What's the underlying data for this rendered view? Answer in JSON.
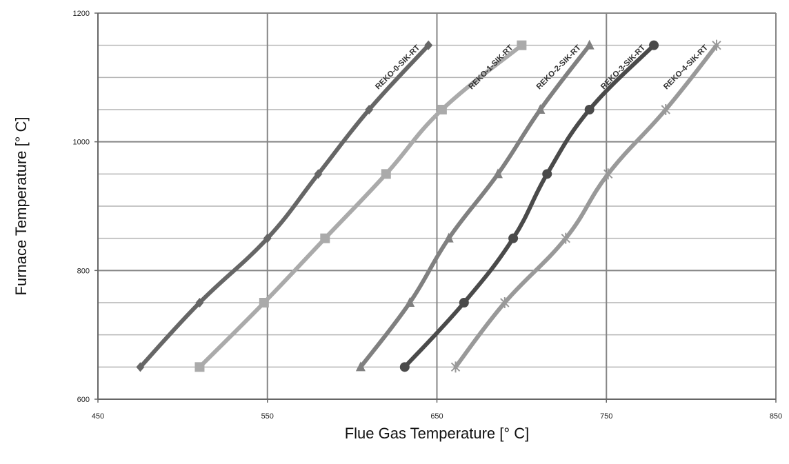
{
  "chart_data": {
    "type": "line",
    "title": "",
    "xlabel": "Flue Gas Temperature [° C]",
    "ylabel": "Furnace Temperature [° C]",
    "xlim": [
      450,
      850
    ],
    "ylim": [
      600,
      1200
    ],
    "x_ticks": [
      450,
      550,
      650,
      750,
      850
    ],
    "y_ticks": [
      600,
      800,
      1000,
      1200
    ],
    "x_tick_labels": [
      "450",
      "550",
      "650",
      "750",
      "850"
    ],
    "y_tick_labels": [
      "600",
      "800",
      "1000",
      "1200"
    ],
    "major_x_gridlines": [
      550,
      650,
      750
    ],
    "minor_y_gridlines": [
      650,
      700,
      750,
      850,
      900,
      950,
      1050,
      1100,
      1150
    ],
    "major_y_gridlines": [
      800,
      1000
    ],
    "grid": true,
    "legend": "inline labels at line ends",
    "series": [
      {
        "name": "REKO-0-SIK-RT",
        "color": "#666666",
        "marker": "diamond",
        "points": [
          [
            475,
            650
          ],
          [
            510,
            750
          ],
          [
            550,
            850
          ],
          [
            580,
            950
          ],
          [
            610,
            1050
          ],
          [
            645,
            1150
          ]
        ]
      },
      {
        "name": "REKO-1-SIK-RT",
        "color": "#aaaaaa",
        "marker": "square",
        "points": [
          [
            510,
            650
          ],
          [
            548,
            750
          ],
          [
            584,
            850
          ],
          [
            620,
            950
          ],
          [
            653,
            1050
          ],
          [
            700,
            1150
          ]
        ]
      },
      {
        "name": "REKO-2-SIK-RT",
        "color": "#808080",
        "marker": "triangle",
        "points": [
          [
            605,
            650
          ],
          [
            634,
            750
          ],
          [
            657,
            850
          ],
          [
            686,
            950
          ],
          [
            711,
            1050
          ],
          [
            740,
            1150
          ]
        ]
      },
      {
        "name": "REKO-3-SIK-RT",
        "color": "#4a4a4a",
        "marker": "circle",
        "points": [
          [
            631,
            650
          ],
          [
            666,
            750
          ],
          [
            695,
            850
          ],
          [
            715,
            950
          ],
          [
            740,
            1050
          ],
          [
            778,
            1150
          ]
        ]
      },
      {
        "name": "REKO-4-SIK-RT",
        "color": "#999999",
        "marker": "star",
        "points": [
          [
            661,
            650
          ],
          [
            690,
            750
          ],
          [
            726,
            850
          ],
          [
            751,
            950
          ],
          [
            785,
            1050
          ],
          [
            815,
            1150
          ]
        ]
      }
    ]
  }
}
